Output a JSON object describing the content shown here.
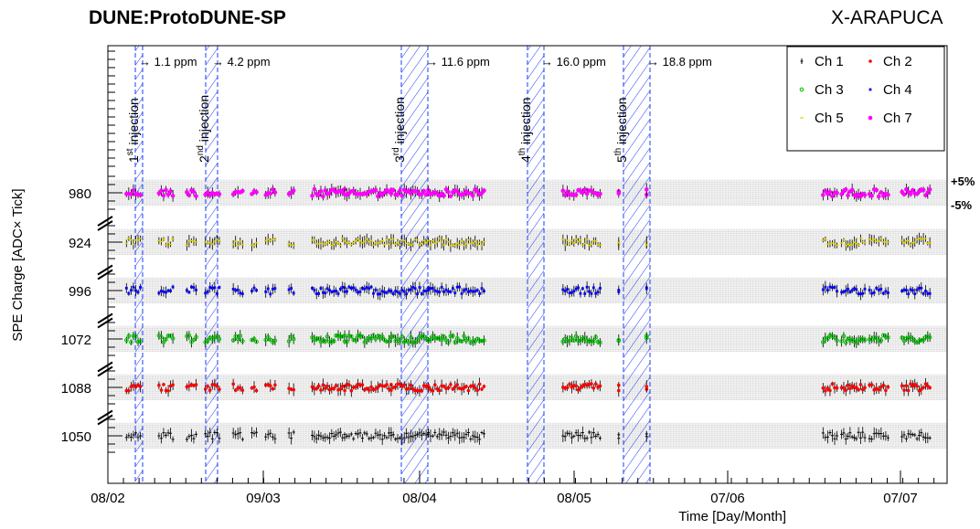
{
  "header": {
    "title": "DUNE:ProtoDUNE-SP",
    "right_label": "X-ARAPUCA"
  },
  "chart_data": {
    "type": "scatter",
    "xlabel": "Time [Day/Month]",
    "ylabel": "SPE Charge [ADC× Tick]",
    "x_ticks": [
      "08/02",
      "09/03",
      "08/04",
      "08/05",
      "07/06",
      "07/07"
    ],
    "band_labels": {
      "upper": "+5%",
      "lower": "-5%"
    },
    "channel_bands": [
      {
        "label": "980",
        "series": "Ch 7"
      },
      {
        "label": "924",
        "series": "Ch 5"
      },
      {
        "label": "996",
        "series": "Ch 4"
      },
      {
        "label": "1072",
        "series": "Ch 3"
      },
      {
        "label": "1088",
        "series": "Ch 2"
      },
      {
        "label": "1050",
        "series": "Ch 1"
      }
    ],
    "series": [
      {
        "name": "Ch 1",
        "color": "#000000",
        "marker": "cross"
      },
      {
        "name": "Ch 2",
        "color": "#ff0000",
        "marker": "circle"
      },
      {
        "name": "Ch 3",
        "color": "#00cc00",
        "marker": "open-circle"
      },
      {
        "name": "Ch 4",
        "color": "#0000ff",
        "marker": "x"
      },
      {
        "name": "Ch 5",
        "color": "#e6d800",
        "marker": "dash"
      },
      {
        "name": "Ch 7",
        "color": "#ff00ff",
        "marker": "big-circle"
      }
    ],
    "injections": [
      {
        "label": "1st injection",
        "ordinal": "1",
        "suffix": "st",
        "concentration": "1.1 ppm"
      },
      {
        "label": "2nd injection",
        "ordinal": "2",
        "suffix": "nd",
        "concentration": "4.2 ppm"
      },
      {
        "label": "3rd injection",
        "ordinal": "3",
        "suffix": "rd",
        "concentration": "11.6 ppm"
      },
      {
        "label": "4th injection",
        "ordinal": "4",
        "suffix": "th",
        "concentration": "16.0 ppm"
      },
      {
        "label": "5th injection",
        "ordinal": "5",
        "suffix": "th",
        "concentration": "18.8 ppm"
      }
    ],
    "data_segments_days": [
      [
        4,
        7
      ],
      [
        11,
        14
      ],
      [
        17,
        19
      ],
      [
        21,
        24
      ],
      [
        27,
        29
      ],
      [
        31,
        32
      ],
      [
        34,
        36
      ],
      [
        39,
        40
      ],
      [
        44,
        51
      ],
      [
        51,
        61
      ],
      [
        61,
        69
      ],
      [
        69,
        81
      ],
      [
        98,
        106
      ],
      [
        110,
        110
      ],
      [
        116,
        116
      ],
      [
        154,
        157
      ],
      [
        158,
        163
      ],
      [
        164,
        168
      ],
      [
        171,
        177
      ]
    ],
    "relative_spread": 0.05,
    "grid": false,
    "legend": "top-right"
  }
}
